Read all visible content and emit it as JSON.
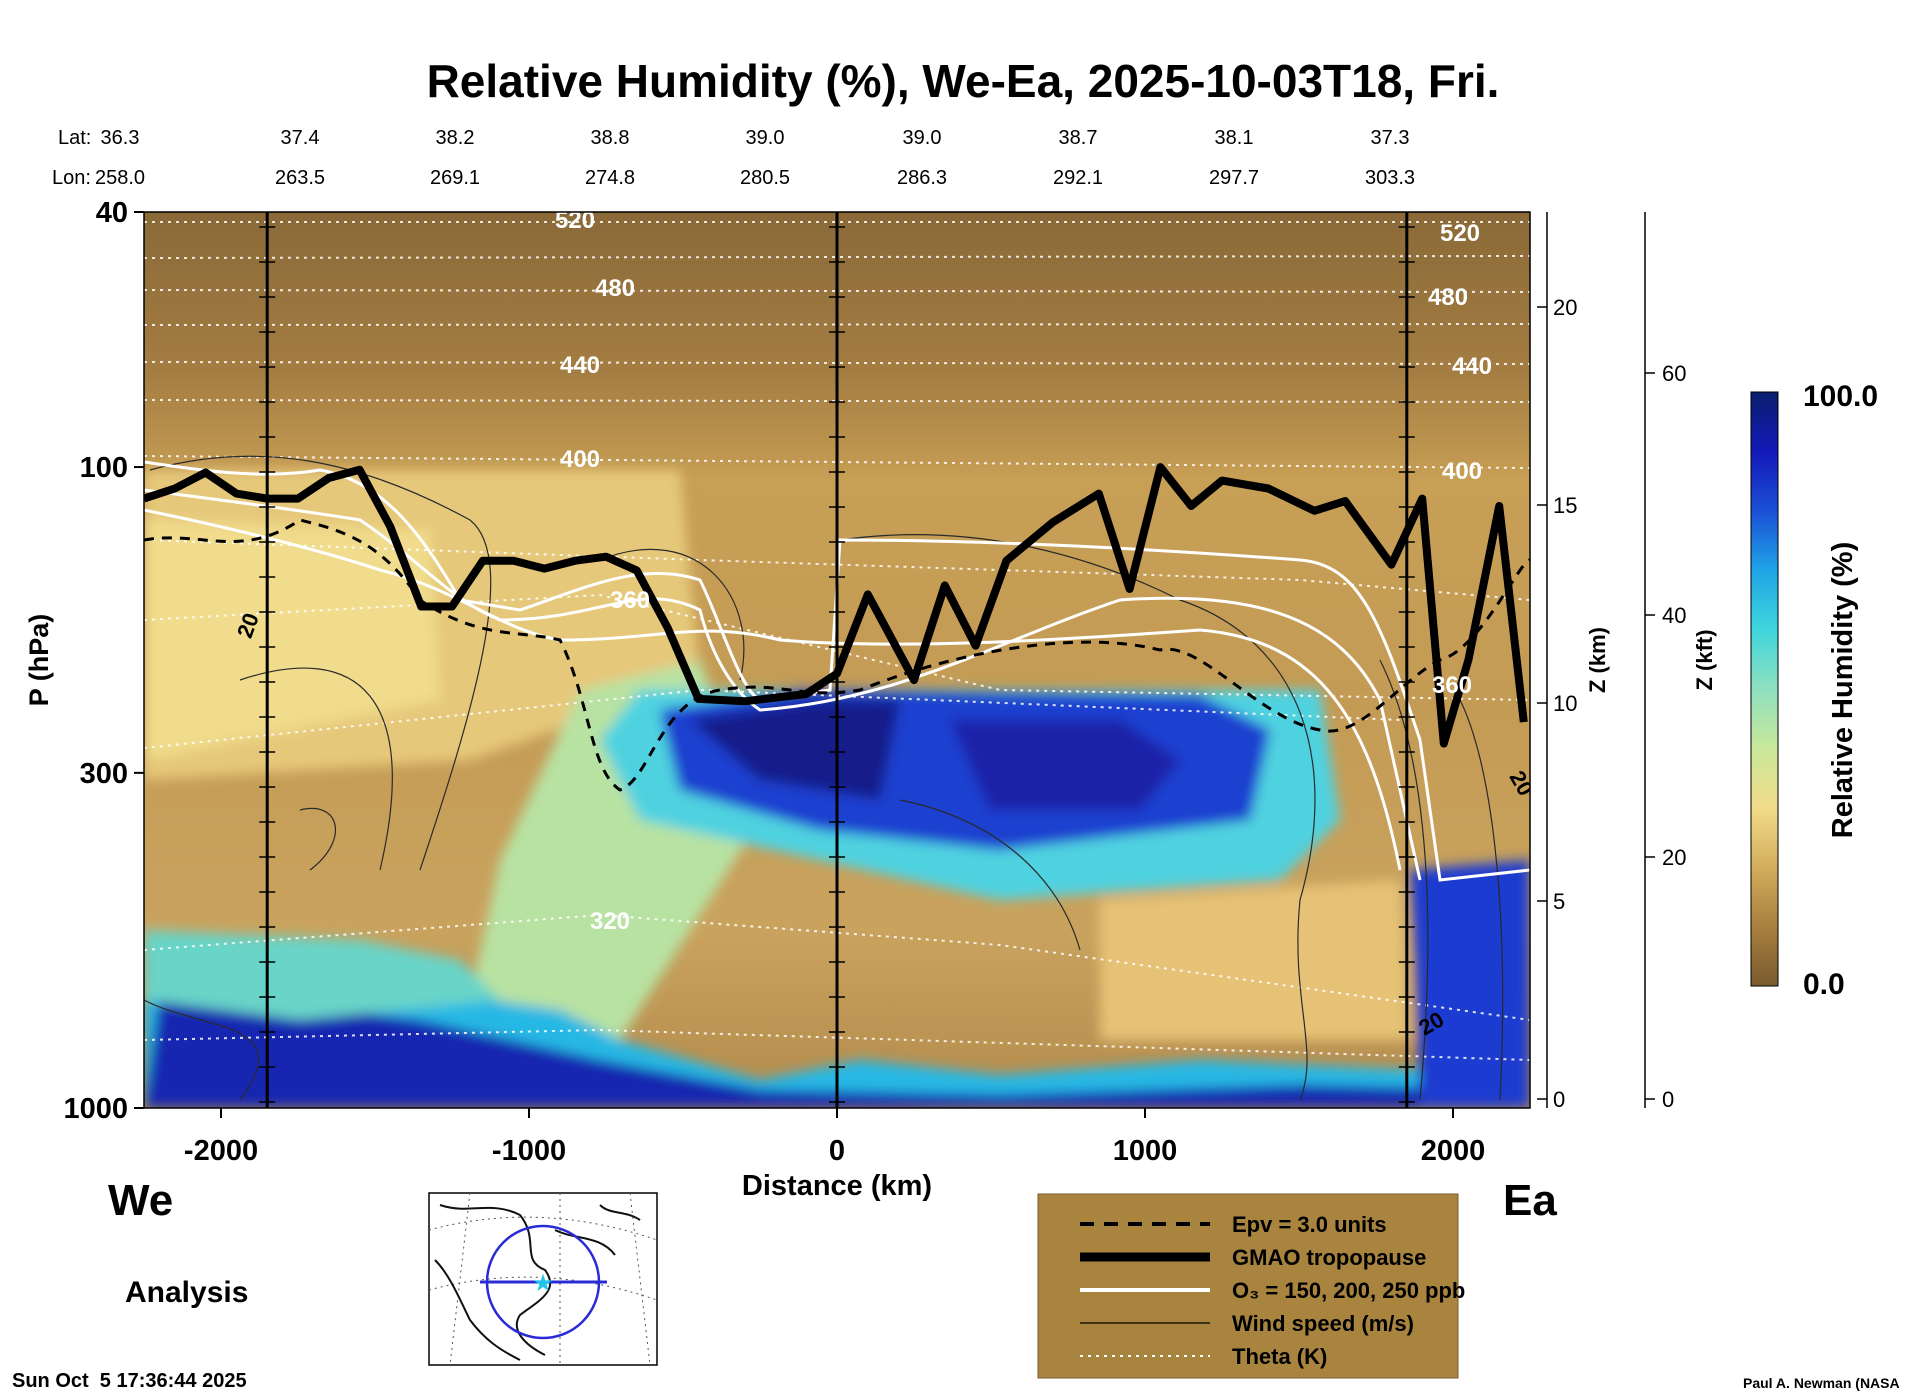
{
  "title": "Relative Humidity (%), We-Ea, 2025-10-03T18, Fri.",
  "lat_label": "Lat:",
  "lon_label": "Lon:",
  "latitudes": [
    "36.3",
    "37.4",
    "38.2",
    "38.8",
    "39.0",
    "39.0",
    "38.7",
    "38.1",
    "37.3"
  ],
  "longitudes": [
    "258.0",
    "263.5",
    "269.1",
    "274.8",
    "280.5",
    "286.3",
    "292.1",
    "297.7",
    "303.3"
  ],
  "left_axis_label": "P (hPa)",
  "z_km_label": "Z (km)",
  "z_kft_label": "Z (kft)",
  "x_axis_label": "Distance (km)",
  "west_label": "We",
  "east_label": "Ea",
  "analysis_label": "Analysis",
  "timestamp": "Sun Oct  5 17:36:44 2025",
  "credit": "Paul A. Newman (NASA",
  "colorbar": {
    "label": "Relative Humidity (%)",
    "max_label": "100.0",
    "min_label": "0.0",
    "stops": [
      "#7a5b2e",
      "#a8803f",
      "#d2ae5c",
      "#f2dc8a",
      "#c9e89a",
      "#8fe0c0",
      "#3ed6dc",
      "#1fa4e6",
      "#1b4fd6",
      "#1419b8",
      "#0b1e6e"
    ]
  },
  "legend": {
    "items": [
      {
        "label": "Epv = 3.0 units",
        "style": "dashed"
      },
      {
        "label": "GMAO tropopause",
        "style": "thick"
      },
      {
        "label": "O₃ = 150, 200, 250 ppb",
        "style": "white"
      },
      {
        "label": "Wind speed (m/s)",
        "style": "thin"
      },
      {
        "label": "Theta (K)",
        "style": "dotted"
      }
    ]
  },
  "theta_labels": [
    "520",
    "480",
    "440",
    "400",
    "360",
    "320",
    "520",
    "480",
    "440",
    "400",
    "360"
  ],
  "wind_labels": [
    "20",
    "20",
    "20"
  ],
  "chart_data": {
    "type": "heatmap",
    "title": "Relative Humidity (%), We-Ea, 2025-10-03T18, Fri.",
    "xlabel": "Distance (km)",
    "ylabel": "P (hPa)",
    "x_ticks": [
      -2000,
      -1000,
      0,
      1000,
      2000
    ],
    "x_tick_labels": [
      "-2000",
      "-1000",
      "0",
      "1000",
      "2000"
    ],
    "xlim": [
      -2250,
      2250
    ],
    "y_scale": "log",
    "y_ticks": [
      40,
      100,
      300,
      1000
    ],
    "y_tick_labels": [
      "40",
      "100",
      "300",
      "1000"
    ],
    "ylim": [
      1000,
      40
    ],
    "z_km_ticks": [
      0,
      5,
      10,
      15,
      20
    ],
    "z_km_tick_labels": [
      "0",
      "5",
      "10",
      "15",
      "20"
    ],
    "z_kft_ticks": [
      0,
      20,
      40,
      60
    ],
    "z_kft_tick_labels": [
      "0",
      "20",
      "40",
      "60"
    ],
    "colorbar_range": [
      0,
      100
    ],
    "vertical_reference_lines_km": [
      -1850,
      0,
      1850
    ],
    "theta_contours_K": [
      320,
      360,
      400,
      440,
      480,
      520
    ],
    "tropopause_pressure_hPa": [
      {
        "x": -2250,
        "p": 112
      },
      {
        "x": -2150,
        "p": 108
      },
      {
        "x": -2050,
        "p": 102
      },
      {
        "x": -1950,
        "p": 110
      },
      {
        "x": -1850,
        "p": 112
      },
      {
        "x": -1750,
        "p": 112
      },
      {
        "x": -1650,
        "p": 104
      },
      {
        "x": -1550,
        "p": 101
      },
      {
        "x": -1450,
        "p": 124
      },
      {
        "x": -1350,
        "p": 165
      },
      {
        "x": -1250,
        "p": 165
      },
      {
        "x": -1150,
        "p": 140
      },
      {
        "x": -1050,
        "p": 140
      },
      {
        "x": -950,
        "p": 144
      },
      {
        "x": -850,
        "p": 140
      },
      {
        "x": -750,
        "p": 138
      },
      {
        "x": -650,
        "p": 145
      },
      {
        "x": -550,
        "p": 178
      },
      {
        "x": -450,
        "p": 230
      },
      {
        "x": -300,
        "p": 232
      },
      {
        "x": -100,
        "p": 226
      },
      {
        "x": 0,
        "p": 210
      },
      {
        "x": 100,
        "p": 158
      },
      {
        "x": 250,
        "p": 215
      },
      {
        "x": 350,
        "p": 153
      },
      {
        "x": 450,
        "p": 190
      },
      {
        "x": 550,
        "p": 140
      },
      {
        "x": 700,
        "p": 122
      },
      {
        "x": 850,
        "p": 110
      },
      {
        "x": 950,
        "p": 155
      },
      {
        "x": 1050,
        "p": 100
      },
      {
        "x": 1150,
        "p": 115
      },
      {
        "x": 1250,
        "p": 105
      },
      {
        "x": 1400,
        "p": 108
      },
      {
        "x": 1550,
        "p": 117
      },
      {
        "x": 1650,
        "p": 113
      },
      {
        "x": 1800,
        "p": 142
      },
      {
        "x": 1900,
        "p": 112
      },
      {
        "x": 1970,
        "p": 270
      },
      {
        "x": 2050,
        "p": 200
      },
      {
        "x": 2150,
        "p": 115
      },
      {
        "x": 2230,
        "p": 250
      }
    ]
  }
}
